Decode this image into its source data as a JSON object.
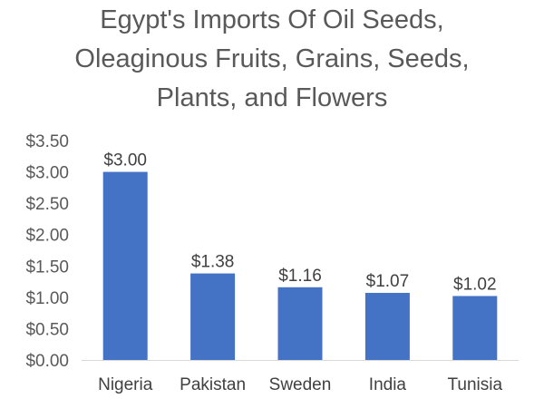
{
  "chart_data": {
    "type": "bar",
    "title_lines": [
      "Egypt's Imports Of Oil Seeds,",
      "Oleaginous Fruits, Grains, Seeds,",
      "Plants, and Flowers"
    ],
    "categories": [
      "Nigeria",
      "Pakistan",
      "Sweden",
      "India",
      "Tunisia"
    ],
    "values": [
      3.0,
      1.38,
      1.16,
      1.07,
      1.02
    ],
    "data_labels": [
      "$3.00",
      "$1.38",
      "$1.16",
      "$1.07",
      "$1.02"
    ],
    "y_ticks": [
      "$0.00",
      "$0.50",
      "$1.00",
      "$1.50",
      "$2.00",
      "$2.50",
      "$3.00",
      "$3.50"
    ],
    "ylim": [
      0,
      3.5
    ],
    "bar_color": "#4472C4",
    "grid": false,
    "legend": "none"
  }
}
